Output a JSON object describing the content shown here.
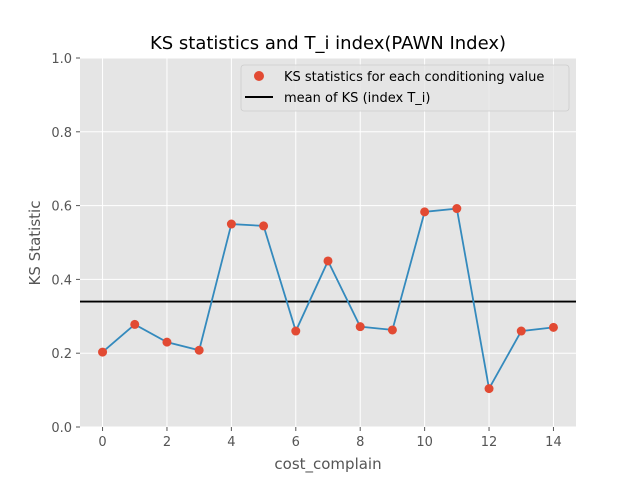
{
  "chart_data": {
    "type": "line",
    "title": "KS statistics and T_i index(PAWN Index)",
    "xlabel": "cost_complain",
    "ylabel": "KS Statistic",
    "x": [
      0,
      1,
      2,
      3,
      4,
      5,
      6,
      7,
      8,
      9,
      10,
      11,
      12,
      13,
      14
    ],
    "series": [
      {
        "name": "KS statistics for each conditioning value",
        "values": [
          0.203,
          0.278,
          0.23,
          0.208,
          0.55,
          0.545,
          0.26,
          0.45,
          0.272,
          0.263,
          0.583,
          0.592,
          0.104,
          0.26,
          0.27
        ],
        "line_color": "#348ABD",
        "marker_color": "#E24A33"
      }
    ],
    "mean": {
      "name": "mean of KS (index T_i)",
      "value": 0.34,
      "color": "#000000"
    },
    "xlim": [
      -0.7,
      14.7
    ],
    "ylim": [
      0.0,
      1.0
    ],
    "xticks": [
      "0",
      "2",
      "4",
      "6",
      "8",
      "10",
      "12",
      "14"
    ],
    "yticks": [
      "0.0",
      "0.2",
      "0.4",
      "0.6",
      "0.8",
      "1.0"
    ],
    "grid": true,
    "legend_position": "top-right",
    "background_color": "#E5E5E5"
  }
}
